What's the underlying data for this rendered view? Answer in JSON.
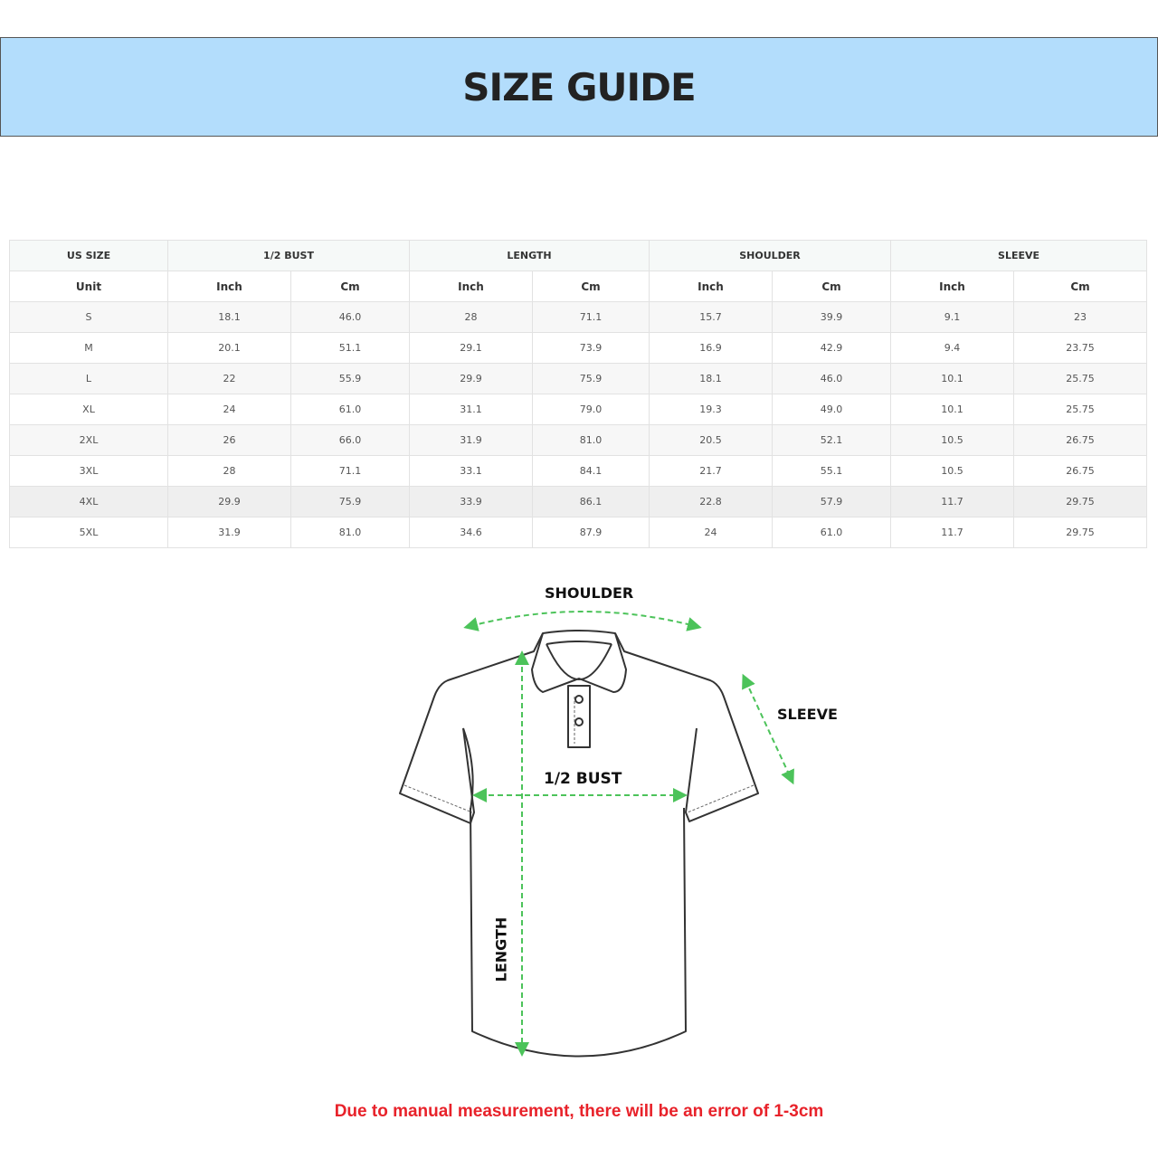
{
  "title": "SIZE GUIDE",
  "table": {
    "groups": [
      "US SIZE",
      "1/2 BUST",
      "LENGTH",
      "SHOULDER",
      "SLEEVE"
    ],
    "units": [
      "Unit",
      "Inch",
      "Cm",
      "Inch",
      "Cm",
      "Inch",
      "Cm",
      "Inch",
      "Cm"
    ],
    "rows": [
      [
        "S",
        "18.1",
        "46.0",
        "28",
        "71.1",
        "15.7",
        "39.9",
        "9.1",
        "23"
      ],
      [
        "M",
        "20.1",
        "51.1",
        "29.1",
        "73.9",
        "16.9",
        "42.9",
        "9.4",
        "23.75"
      ],
      [
        "L",
        "22",
        "55.9",
        "29.9",
        "75.9",
        "18.1",
        "46.0",
        "10.1",
        "25.75"
      ],
      [
        "XL",
        "24",
        "61.0",
        "31.1",
        "79.0",
        "19.3",
        "49.0",
        "10.1",
        "25.75"
      ],
      [
        "2XL",
        "26",
        "66.0",
        "31.9",
        "81.0",
        "20.5",
        "52.1",
        "10.5",
        "26.75"
      ],
      [
        "3XL",
        "28",
        "71.1",
        "33.1",
        "84.1",
        "21.7",
        "55.1",
        "10.5",
        "26.75"
      ],
      [
        "4XL",
        "29.9",
        "75.9",
        "33.9",
        "86.1",
        "22.8",
        "57.9",
        "11.7",
        "29.75"
      ],
      [
        "5XL",
        "31.9",
        "81.0",
        "34.6",
        "87.9",
        "24",
        "61.0",
        "11.7",
        "29.75"
      ]
    ]
  },
  "diagram": {
    "shoulder": "SHOULDER",
    "sleeve": "SLEEVE",
    "bust": "1/2 BUST",
    "length": "LENGTH",
    "arrow_color": "#4cc35a"
  },
  "note": "Due to manual measurement, there will be an error of 1-3cm",
  "colors": {
    "banner": "#b3ddfc",
    "note": "#e8222a"
  }
}
